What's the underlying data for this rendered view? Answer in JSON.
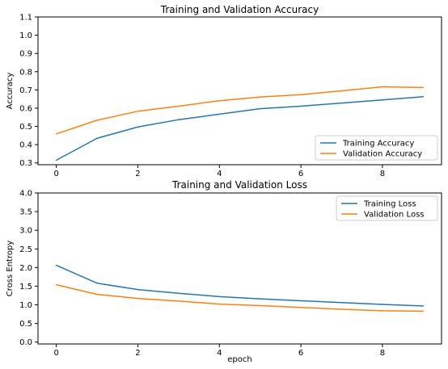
{
  "chart_data": [
    {
      "type": "line",
      "title": "Training and Validation Accuracy",
      "xlabel": "",
      "ylabel": "Accuracy",
      "x": [
        0,
        1,
        2,
        3,
        4,
        5,
        6,
        7,
        8,
        9
      ],
      "xticks": [
        0,
        2,
        4,
        6,
        8
      ],
      "yticks": [
        0.3,
        0.4,
        0.5,
        0.6,
        0.7,
        0.8,
        0.9,
        1.0,
        1.1
      ],
      "ytick_labels": [
        "0.3",
        "0.4",
        "0.5",
        "0.6",
        "0.7",
        "0.8",
        "0.9",
        "1.0",
        "1.1"
      ],
      "xlim": [
        -0.45,
        9.45
      ],
      "ylim": [
        0.29,
        1.1
      ],
      "legend_position": "lower-right",
      "grid": false,
      "series": [
        {
          "name": "Training Accuracy",
          "color": "#1f77b4",
          "values": [
            0.315,
            0.435,
            0.497,
            0.537,
            0.567,
            0.597,
            0.611,
            0.628,
            0.645,
            0.663
          ]
        },
        {
          "name": "Validation Accuracy",
          "color": "#ff7f0e",
          "values": [
            0.459,
            0.534,
            0.583,
            0.611,
            0.641,
            0.661,
            0.674,
            0.695,
            0.717,
            0.713
          ]
        }
      ]
    },
    {
      "type": "line",
      "title": "Training and Validation Loss",
      "xlabel": "epoch",
      "ylabel": "Cross Entropy",
      "x": [
        0,
        1,
        2,
        3,
        4,
        5,
        6,
        7,
        8,
        9
      ],
      "xticks": [
        0,
        2,
        4,
        6,
        8
      ],
      "yticks": [
        0.0,
        0.5,
        1.0,
        1.5,
        2.0,
        2.5,
        3.0,
        3.5,
        4.0
      ],
      "ytick_labels": [
        "0.0",
        "0.5",
        "1.0",
        "1.5",
        "2.0",
        "2.5",
        "3.0",
        "3.5",
        "4.0"
      ],
      "xlim": [
        -0.45,
        9.45
      ],
      "ylim": [
        -0.05,
        4.0
      ],
      "legend_position": "upper-right",
      "grid": false,
      "series": [
        {
          "name": "Training Loss",
          "color": "#1f77b4",
          "values": [
            2.06,
            1.58,
            1.41,
            1.31,
            1.22,
            1.16,
            1.11,
            1.06,
            1.01,
            0.97
          ]
        },
        {
          "name": "Validation Loss",
          "color": "#ff7f0e",
          "values": [
            1.54,
            1.28,
            1.17,
            1.1,
            1.02,
            0.98,
            0.93,
            0.88,
            0.84,
            0.83
          ]
        }
      ]
    }
  ]
}
